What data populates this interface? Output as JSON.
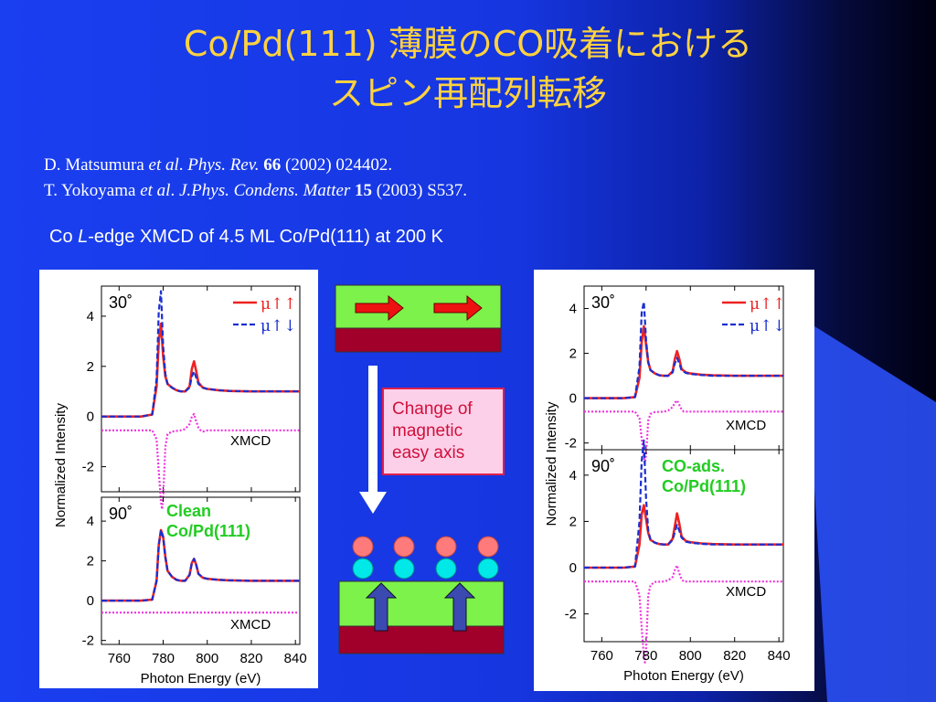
{
  "slide": {
    "title_line1": "Co/Pd(111) 薄膜のCO吸着における",
    "title_line2": "スピン再配列転移",
    "references": [
      {
        "authors": "D. Matsumura",
        "etal": "et al",
        "journal": "Phys. Rev.",
        "volume": "66",
        "rest": "(2002) 024402."
      },
      {
        "authors": "T. Yokoyama",
        "etal": "et al",
        "journal": "J.Phys. Condens. Matter",
        "volume": "15",
        "rest": "(2003) S537."
      }
    ],
    "subtitle_pre": "Co ",
    "subtitle_italic": "L",
    "subtitle_post": "-edge XMCD of 4.5 ML Co/Pd(111) at 200 K",
    "change_text": [
      "Change of",
      "magnetic",
      "easy axis"
    ]
  },
  "colors": {
    "title": "#ffd23f",
    "mu_up": "#ee2222",
    "mu_down": "#1a2fd0",
    "xmcd": "#ee33dd",
    "label_green": "#22cc22",
    "film_green": "#7cf24a",
    "substrate": "#a0002a",
    "arrow_red": "#ee1111",
    "co_carbon": "#00e8e8",
    "co_oxygen": "#ff7a7a",
    "blue_arrow": "#3a4ab0"
  },
  "chart_data": [
    {
      "type": "line",
      "name": "left",
      "xlabel": "Photon Energy  (eV)",
      "ylabel": "Normalized Intensity",
      "x_ticks": [
        "760",
        "780",
        "800",
        "820",
        "840"
      ],
      "xlim": [
        752,
        842
      ],
      "legend": [
        "μ↑↑",
        "μ↑↓"
      ],
      "subplots": [
        {
          "angle": "30˚",
          "ylim": [
            -3,
            5.2
          ],
          "y_ticks": [
            "4",
            "2",
            "0",
            "-2"
          ],
          "xmcd_label": "XMCD",
          "series": [
            {
              "x": [
                752,
                770,
                775,
                777,
                778,
                779,
                780,
                781,
                782,
                784,
                786,
                788,
                790,
                792,
                793,
                794,
                795,
                796,
                798,
                800,
                805,
                810,
                820,
                842
              ],
              "y": [
                0,
                0,
                0.08,
                1.2,
                3.0,
                3.7,
                2.4,
                1.6,
                1.3,
                1.15,
                1.05,
                1.0,
                1.0,
                1.2,
                1.9,
                2.2,
                1.8,
                1.35,
                1.15,
                1.1,
                1.05,
                1.02,
                1.0,
                1.0
              ]
            },
            {
              "x": [
                752,
                770,
                775,
                777,
                778,
                779,
                780,
                781,
                782,
                784,
                786,
                788,
                790,
                792,
                793,
                794,
                795,
                796,
                798,
                800,
                805,
                810,
                820,
                842
              ],
              "y": [
                0,
                0,
                0.08,
                1.5,
                4.2,
                5.0,
                2.8,
                1.7,
                1.3,
                1.15,
                1.05,
                1.0,
                1.0,
                1.15,
                1.6,
                1.8,
                1.55,
                1.3,
                1.15,
                1.1,
                1.05,
                1.02,
                1.0,
                1.0
              ]
            },
            {
              "x": [
                752,
                770,
                775,
                777,
                778,
                779,
                779.5,
                780,
                781,
                782,
                784,
                788,
                790,
                792,
                793,
                794,
                795,
                796,
                797,
                798,
                800,
                810,
                842
              ],
              "y": [
                -0.55,
                -0.55,
                -0.55,
                -0.9,
                -2.2,
                -3.4,
                -3.7,
                -3.2,
                -1.2,
                -0.7,
                -0.6,
                -0.55,
                -0.5,
                -0.3,
                0.0,
                0.1,
                -0.2,
                -0.45,
                -0.55,
                -0.6,
                -0.55,
                -0.55,
                -0.55
              ]
            }
          ]
        },
        {
          "angle": "90˚",
          "ylim": [
            -2.2,
            5.2
          ],
          "y_ticks": [
            "4",
            "2",
            "0",
            "-2"
          ],
          "xmcd_label": "XMCD",
          "sample_label": [
            "Clean",
            "Co/Pd(111)"
          ],
          "series": [
            {
              "x": [
                752,
                770,
                775,
                777,
                778,
                779,
                780,
                781,
                782,
                784,
                786,
                788,
                790,
                792,
                793,
                794,
                795,
                796,
                798,
                800,
                805,
                810,
                820,
                842
              ],
              "y": [
                0,
                0,
                0.05,
                1.0,
                2.8,
                3.55,
                3.2,
                2.2,
                1.5,
                1.2,
                1.05,
                1.0,
                1.0,
                1.3,
                1.9,
                2.1,
                1.8,
                1.35,
                1.15,
                1.1,
                1.05,
                1.02,
                1.0,
                1.0
              ]
            },
            {
              "x": [
                752,
                770,
                775,
                777,
                778,
                779,
                780,
                781,
                782,
                784,
                786,
                788,
                790,
                792,
                793,
                794,
                795,
                796,
                798,
                800,
                805,
                810,
                820,
                842
              ],
              "y": [
                0,
                0,
                0.05,
                1.0,
                2.8,
                3.55,
                3.2,
                2.2,
                1.5,
                1.2,
                1.05,
                1.0,
                1.0,
                1.3,
                1.9,
                2.1,
                1.8,
                1.35,
                1.15,
                1.1,
                1.05,
                1.02,
                1.0,
                1.0
              ]
            },
            {
              "x": [
                752,
                842
              ],
              "y": [
                -0.6,
                -0.6
              ]
            }
          ]
        }
      ]
    },
    {
      "type": "line",
      "name": "right",
      "xlabel": "Photon Energy  (eV)",
      "ylabel": "Normalized Intensity",
      "x_ticks": [
        "760",
        "780",
        "800",
        "820",
        "840"
      ],
      "xlim": [
        752,
        842
      ],
      "legend": [
        "μ↑↑",
        "μ↑↓"
      ],
      "subplots": [
        {
          "angle": "30˚",
          "ylim": [
            -2.3,
            5.0
          ],
          "y_ticks": [
            "4",
            "2",
            "0",
            "-2"
          ],
          "xmcd_label": "XMCD",
          "series": [
            {
              "x": [
                752,
                770,
                775,
                777,
                778,
                779,
                780,
                781,
                782,
                784,
                786,
                788,
                790,
                792,
                793,
                794,
                795,
                796,
                798,
                800,
                805,
                810,
                820,
                842
              ],
              "y": [
                0,
                0,
                0.05,
                0.9,
                2.5,
                3.2,
                2.4,
                1.6,
                1.25,
                1.1,
                1.02,
                1.0,
                1.0,
                1.2,
                1.75,
                2.1,
                1.75,
                1.3,
                1.15,
                1.1,
                1.05,
                1.02,
                1.0,
                1.0
              ]
            },
            {
              "x": [
                752,
                770,
                775,
                777,
                778,
                779,
                780,
                781,
                782,
                784,
                786,
                788,
                790,
                792,
                793,
                794,
                795,
                796,
                798,
                800,
                805,
                810,
                820,
                842
              ],
              "y": [
                0,
                0,
                0.05,
                1.4,
                3.8,
                4.3,
                2.6,
                1.6,
                1.25,
                1.1,
                1.02,
                1.0,
                1.0,
                1.15,
                1.55,
                1.8,
                1.55,
                1.25,
                1.12,
                1.08,
                1.03,
                1.0,
                1.0,
                1.0
              ]
            },
            {
              "x": [
                752,
                770,
                775,
                777,
                778,
                779,
                779.5,
                780,
                781,
                782,
                784,
                788,
                790,
                792,
                793,
                794,
                795,
                796,
                797,
                798,
                800,
                810,
                842
              ],
              "y": [
                -0.6,
                -0.6,
                -0.6,
                -0.9,
                -1.8,
                -2.6,
                -2.9,
                -2.5,
                -1.0,
                -0.7,
                -0.62,
                -0.6,
                -0.55,
                -0.4,
                -0.2,
                -0.1,
                -0.3,
                -0.5,
                -0.6,
                -0.6,
                -0.6,
                -0.6,
                -0.6
              ]
            }
          ]
        },
        {
          "angle": "90˚",
          "ylim": [
            -3.2,
            5.1
          ],
          "y_ticks": [
            "4",
            "2",
            "0",
            "-2"
          ],
          "xmcd_label": "XMCD",
          "sample_label": [
            "CO-ads.",
            "Co/Pd(111)"
          ],
          "series": [
            {
              "x": [
                752,
                770,
                775,
                777,
                778,
                779,
                780,
                781,
                782,
                784,
                786,
                788,
                790,
                792,
                793,
                794,
                795,
                796,
                798,
                800,
                805,
                810,
                820,
                842
              ],
              "y": [
                0,
                0,
                0.05,
                1.0,
                2.3,
                2.7,
                2.1,
                1.5,
                1.2,
                1.08,
                1.02,
                1.0,
                1.0,
                1.25,
                1.8,
                2.35,
                1.9,
                1.35,
                1.15,
                1.1,
                1.05,
                1.02,
                1.0,
                1.0
              ]
            },
            {
              "x": [
                752,
                770,
                775,
                777,
                778,
                779,
                780,
                781,
                782,
                784,
                786,
                788,
                790,
                792,
                793,
                794,
                795,
                796,
                798,
                800,
                805,
                810,
                820,
                842
              ],
              "y": [
                0,
                0,
                0.05,
                2.0,
                4.6,
                5.5,
                3.0,
                1.6,
                1.2,
                1.08,
                1.02,
                1.0,
                1.0,
                1.2,
                1.55,
                1.85,
                1.6,
                1.3,
                1.12,
                1.08,
                1.03,
                1.0,
                1.0,
                1.0
              ]
            },
            {
              "x": [
                752,
                770,
                775,
                777,
                778,
                779,
                779.5,
                780,
                781,
                782,
                784,
                788,
                790,
                792,
                793,
                794,
                795,
                796,
                797,
                798,
                800,
                810,
                842
              ],
              "y": [
                -0.6,
                -0.6,
                -0.6,
                -1.2,
                -2.6,
                -3.8,
                -4.1,
                -3.5,
                -1.2,
                -0.75,
                -0.62,
                -0.6,
                -0.55,
                -0.4,
                -0.1,
                0.1,
                -0.25,
                -0.5,
                -0.6,
                -0.6,
                -0.6,
                -0.6,
                -0.6
              ]
            }
          ]
        }
      ]
    }
  ]
}
